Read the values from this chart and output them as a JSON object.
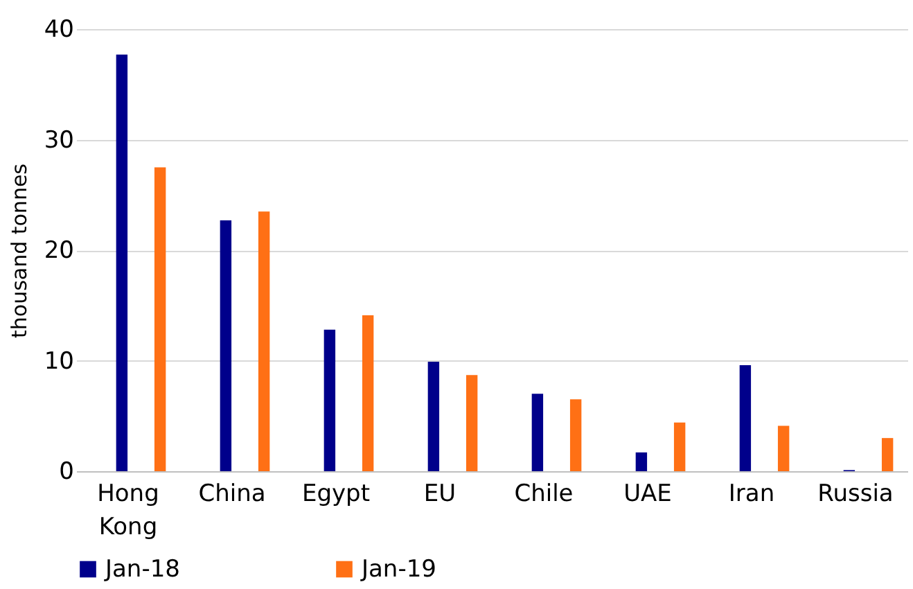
{
  "chart_data": {
    "type": "bar",
    "ylabel": "thousand tonnes",
    "categories": [
      "Hong Kong",
      "China",
      "Egypt",
      "EU",
      "Chile",
      "UAE",
      "Iran",
      "Russia"
    ],
    "series": [
      {
        "name": "Jan-18",
        "color": "#00008b",
        "values": [
          37.7,
          22.7,
          12.8,
          9.9,
          7.0,
          1.7,
          9.6,
          0.1
        ]
      },
      {
        "name": "Jan-19",
        "color": "#ff7015",
        "values": [
          27.5,
          23.5,
          14.1,
          8.7,
          6.5,
          4.4,
          4.1,
          3.0
        ]
      }
    ],
    "ylim": [
      0,
      40
    ],
    "yticks": [
      0,
      10,
      20,
      30,
      40
    ],
    "grid": "y",
    "legend": "bottom"
  }
}
